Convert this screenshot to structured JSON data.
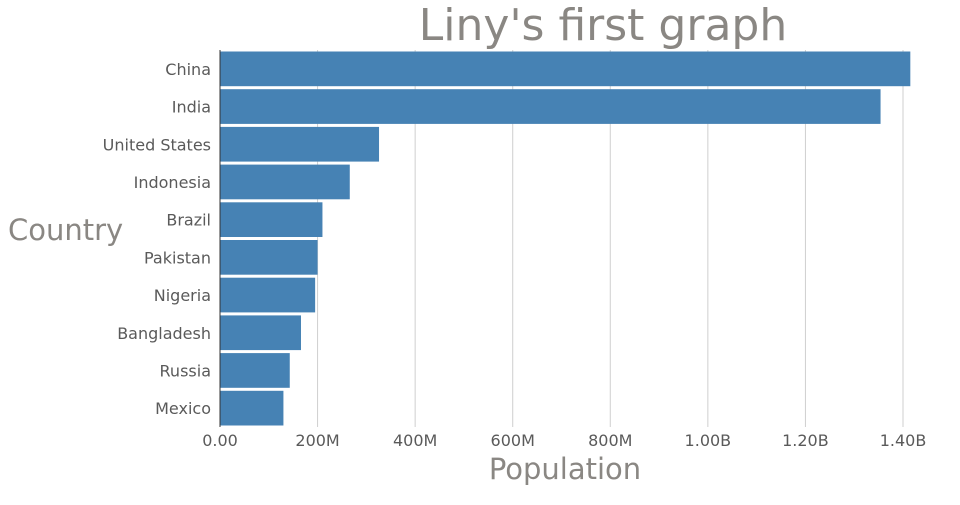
{
  "chart_data": {
    "type": "bar",
    "orientation": "horizontal",
    "title": "Liny's first graph",
    "xlabel": "Population",
    "ylabel": "Country",
    "categories": [
      "China",
      "India",
      "United States",
      "Indonesia",
      "Brazil",
      "Pakistan",
      "Nigeria",
      "Bangladesh",
      "Russia",
      "Mexico"
    ],
    "values": [
      1415000000,
      1354000000,
      326000000,
      266000000,
      210000000,
      200000000,
      195000000,
      166000000,
      143000000,
      130000000
    ],
    "xlim": [
      0,
      1400000000
    ],
    "xticks": [
      0,
      200000000,
      400000000,
      600000000,
      800000000,
      1000000000,
      1200000000,
      1400000000
    ],
    "xtick_labels": [
      "0.00",
      "200M",
      "400M",
      "600M",
      "800M",
      "1.00B",
      "1.20B",
      "1.40B"
    ],
    "bar_color": "#4682b4",
    "grid": true
  }
}
